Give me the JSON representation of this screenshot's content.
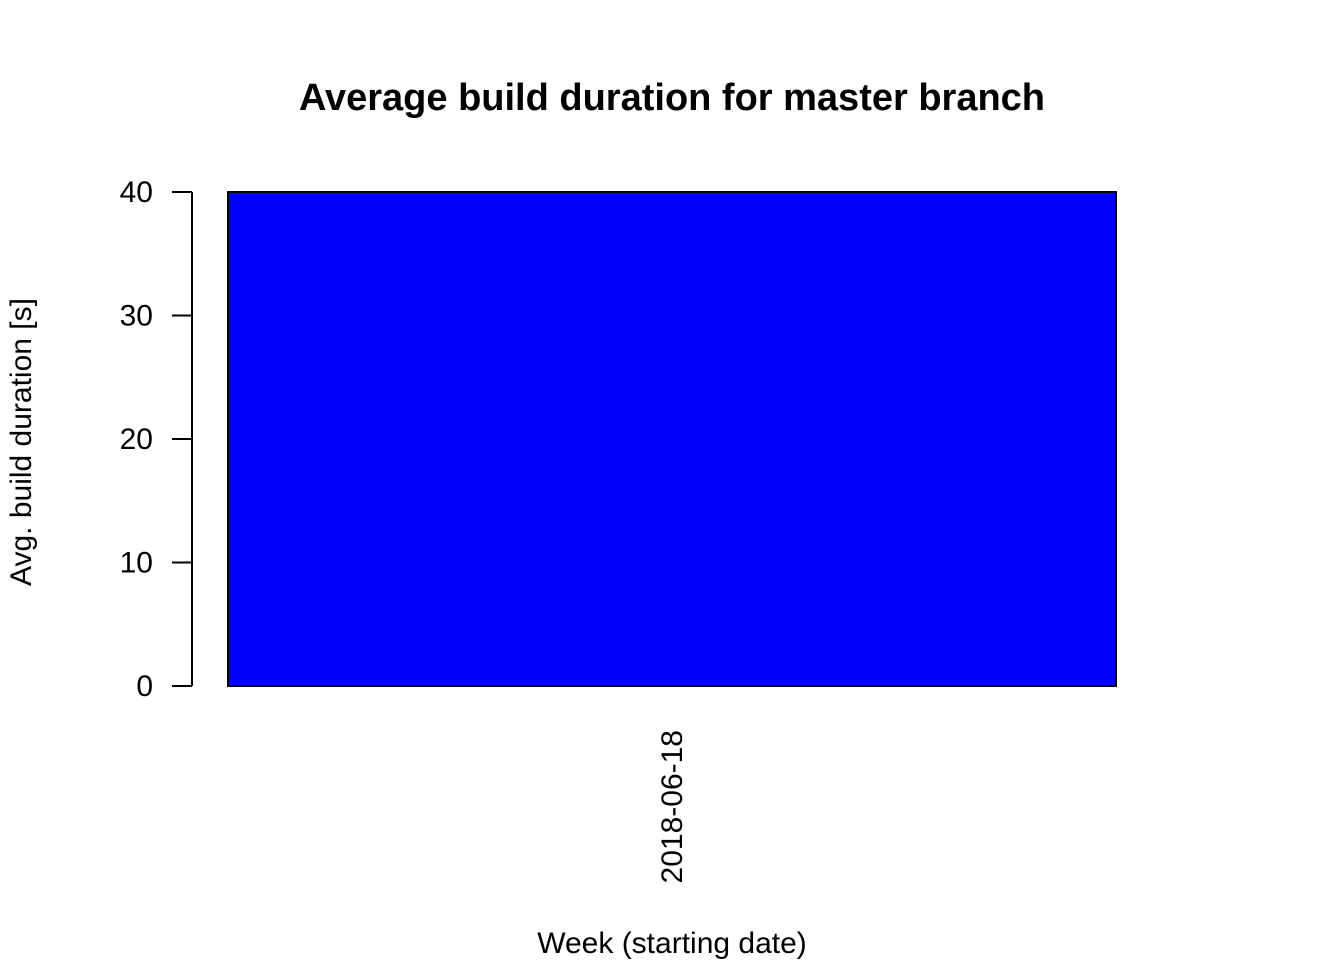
{
  "chart_data": {
    "type": "bar",
    "title": "Average build duration for master branch",
    "xlabel": "Week (starting date)",
    "ylabel": "Avg. build duration [s]",
    "categories": [
      "2018-06-18"
    ],
    "values": [
      40
    ],
    "ylim": [
      0,
      40
    ],
    "yticks": [
      0,
      10,
      20,
      30,
      40
    ],
    "bar_color": "#0000ff",
    "grid": false,
    "legend": "none"
  }
}
